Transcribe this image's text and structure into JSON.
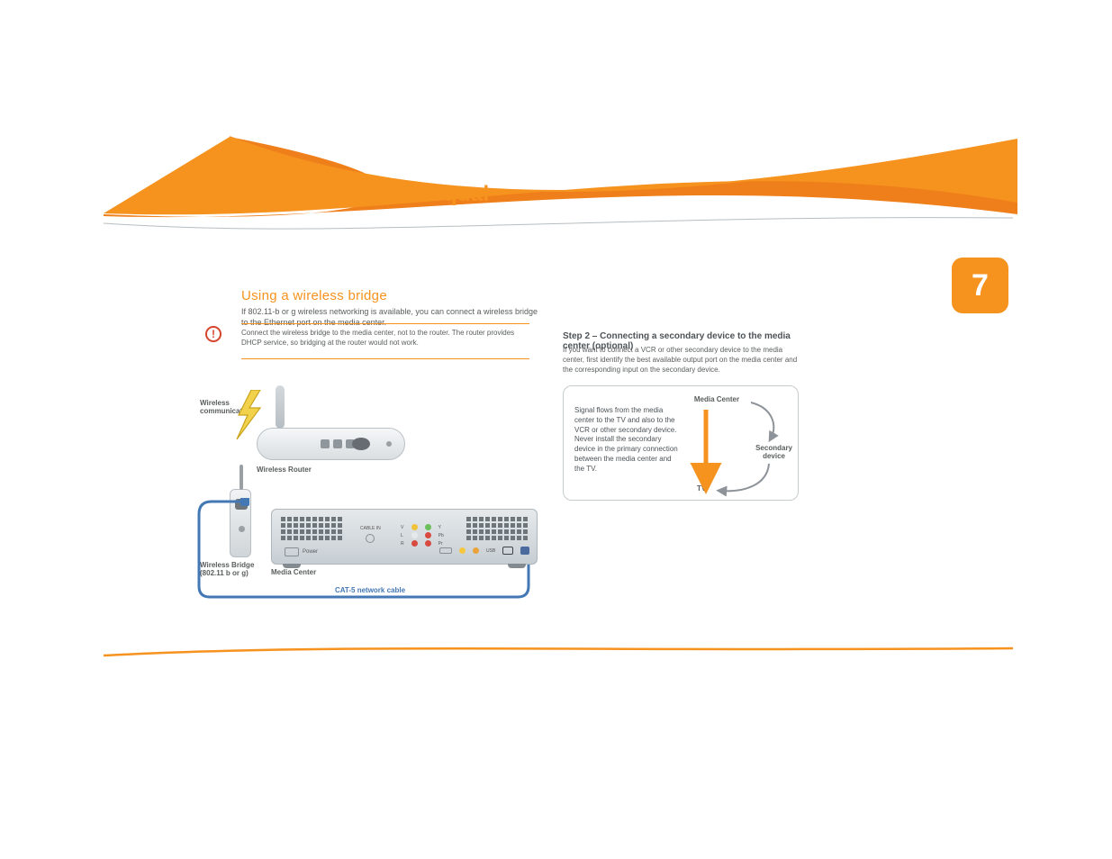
{
  "colors": {
    "orange": "#f6921e",
    "orange_deep": "#ef7f1a",
    "curve_thin": "#f6921e",
    "grey_line": "#b6bdc1",
    "text_grey": "#5a5d5e",
    "cat5_blue": "#4378b5",
    "arrow_orange": "#f6921e",
    "arrow_grey": "#8d9398",
    "usb_yellow": "#f4c73f",
    "rca_yellow": "#f0c23a",
    "rca_green": "#6bbf5b",
    "rca_white": "#e6e9eb",
    "rca_red": "#d84a3f",
    "jack_orange": "#eaa23b",
    "callout_red": "#d6452b"
  },
  "tagline": "all DVRs were not created equal",
  "page_number": "7",
  "section": {
    "title": "Using a wireless bridge",
    "subtitle": "If 802.11-b or g wireless networking is available, you can connect a wireless bridge to the Ethernet port on the media center."
  },
  "callout": {
    "text": "Connect the wireless bridge to the media center, not to the router. The router provides DHCP service, so bridging at the router would not work."
  },
  "step_title": "Step 2 – Connecting a secondary device to the media center (optional)",
  "step_body": "If you want to connect a VCR or other secondary device to the media center, first identify the best available output port on the media center and the corresponding input on the secondary device.",
  "left_diagram": {
    "lbl_wireless_comm": "Wireless\ncommunication",
    "lbl_router": "Wireless Router",
    "lbl_bridge": "Wireless Bridge\n(802.11 b or g)",
    "lbl_mediacenter": "Media Center",
    "cat5_caption": "CAT-5 network cable",
    "mc_power": "Power",
    "mc_cablein": "CABLE IN",
    "mc_usb": "USB",
    "rca": {
      "rows": [
        {
          "l": "V",
          "r": "Y"
        },
        {
          "l": "L",
          "r": "Pb"
        },
        {
          "l": "R",
          "r": "Pr"
        }
      ]
    }
  },
  "right_panel": {
    "desc": "Signal flows from the media center to the TV and also to the VCR or other secondary device. Never install the secondary device in the primary connection between the media center and the TV.",
    "nodes": {
      "mc": "Media Center",
      "sec": "Secondary\ndevice",
      "tv": "TV"
    }
  }
}
